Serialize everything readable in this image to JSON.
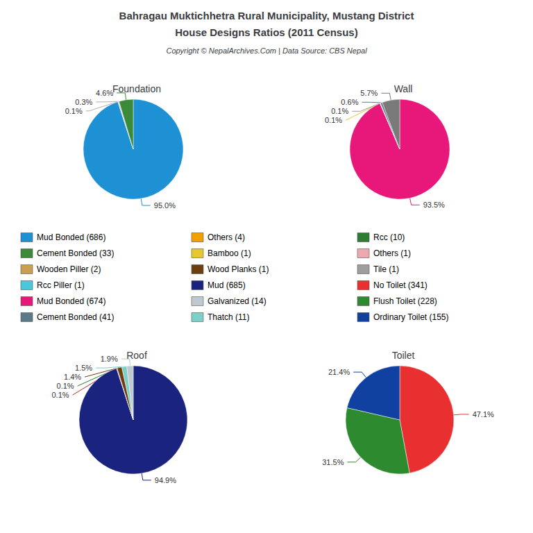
{
  "title": "Bahragau Muktichhetra Rural Municipality, Mustang District",
  "subtitle": "House Designs Ratios (2011 Census)",
  "annotations": [
    "Copyright © NepalArchives.Com | Data Source: CBS Nepal"
  ],
  "legend_entries": [
    {
      "label": "Mud Bonded (686)",
      "color": "#1e90d4"
    },
    {
      "label": "Cement Bonded (33)",
      "color": "#3a8a3a"
    },
    {
      "label": "Wooden Piller (2)",
      "color": "#c8a050"
    },
    {
      "label": "Rcc Piller (1)",
      "color": "#48c8d8"
    },
    {
      "label": "Mud Bonded (674)",
      "color": "#e8187a"
    },
    {
      "label": "Cement Bonded (41)",
      "color": "#5a7a8a"
    },
    {
      "label": "Others (4)",
      "color": "#f0a000"
    },
    {
      "label": "Bamboo (1)",
      "color": "#e8c830"
    },
    {
      "label": "Wood Planks (1)",
      "color": "#6d3e0f"
    },
    {
      "label": "Mud (685)",
      "color": "#1a237e"
    },
    {
      "label": "Galvanized (14)",
      "color": "#c0c8d0"
    },
    {
      "label": "Thatch (11)",
      "color": "#7ecfc8"
    },
    {
      "label": "Rcc (10)",
      "color": "#2e7d32"
    },
    {
      "label": "Others (1)",
      "color": "#f0a8b0"
    },
    {
      "label": "Tile (1)",
      "color": "#9e9e9e"
    },
    {
      "label": "No Toilet (341)",
      "color": "#e83030"
    },
    {
      "label": "Flush Toilet (228)",
      "color": "#2e8a2e"
    },
    {
      "label": "Ordinary Toilet (155)",
      "color": "#1040a0"
    }
  ],
  "chart_data": [
    {
      "type": "pie",
      "title": "Foundation",
      "values": [
        95.0,
        0.1,
        0.3,
        4.6
      ],
      "value_labels": [
        "95.0%",
        "0.1%",
        "0.3%",
        "4.6%"
      ],
      "colors": [
        "#1e90d4",
        "#b0b0b0",
        "#b0b0b0",
        "#3a8a3a"
      ],
      "data_labels": true
    },
    {
      "type": "pie",
      "title": "Wall",
      "values": [
        93.5,
        0.1,
        0.1,
        0.6,
        5.7
      ],
      "value_labels": [
        "93.5%",
        "0.1%",
        "0.1%",
        "0.6%",
        "5.7%"
      ],
      "colors": [
        "#e8187a",
        "#e8c830",
        "#9e9e9e",
        "#5a7a8a",
        "#7a7a7a"
      ],
      "data_labels": true
    },
    {
      "type": "pie",
      "title": "Roof",
      "values": [
        94.9,
        0.1,
        0.1,
        1.4,
        1.5,
        1.9
      ],
      "value_labels": [
        "94.9%",
        "0.1%",
        "0.1%",
        "1.4%",
        "1.5%",
        "1.9%"
      ],
      "colors": [
        "#1a237e",
        "#c62828",
        "#2e7d32",
        "#6d3e0f",
        "#7ecfc8",
        "#c0c8d0"
      ],
      "data_labels": true
    },
    {
      "type": "pie",
      "title": "Toilet",
      "values": [
        47.1,
        31.5,
        21.4
      ],
      "value_labels": [
        "47.1%",
        "31.5%",
        "21.4%"
      ],
      "colors": [
        "#e83030",
        "#2e8a2e",
        "#1040a0"
      ],
      "data_labels": true
    }
  ]
}
